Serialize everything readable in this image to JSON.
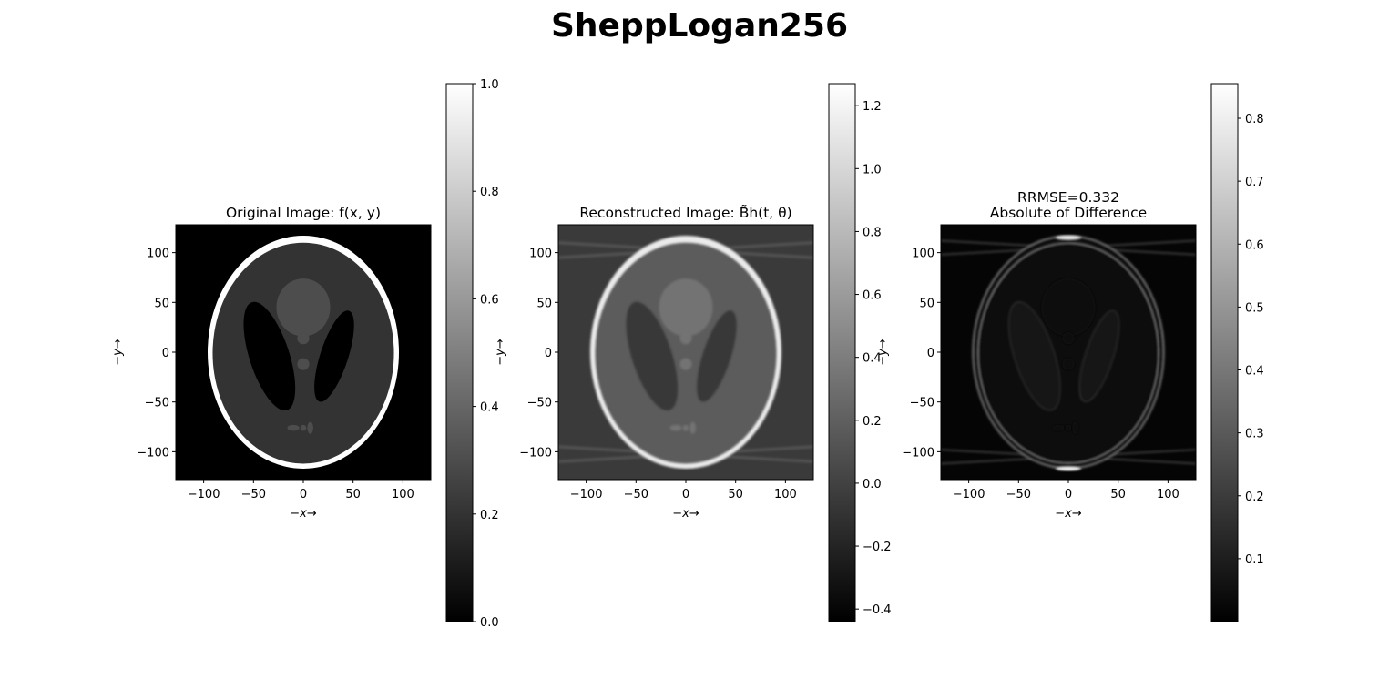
{
  "figure": {
    "suptitle": "SheppLogan256"
  },
  "chart_data": [
    {
      "type": "heatmap",
      "title_lines": [
        "Original Image: f(x, y)"
      ],
      "xlabel": "−x→",
      "ylabel": "−y→",
      "xlim": [
        -128,
        128
      ],
      "ylim": [
        -128,
        128
      ],
      "xticks": [
        -100,
        -50,
        0,
        50,
        100
      ],
      "yticks": [
        100,
        50,
        0,
        -50,
        -100
      ],
      "colormap": "gray",
      "content": "shepp-logan-original",
      "colorbar": {
        "min": 0.0,
        "max": 1.0,
        "ticks": [
          0.0,
          0.2,
          0.4,
          0.6,
          0.8,
          1.0
        ],
        "tick_labels": [
          "0.0",
          "0.2",
          "0.4",
          "0.6",
          "0.8",
          "1.0"
        ]
      }
    },
    {
      "type": "heatmap",
      "title_lines": [
        "Reconstructed Image: B̃h(t, θ)"
      ],
      "xlabel": "−x→",
      "ylabel": "−y→",
      "xlim": [
        -128,
        128
      ],
      "ylim": [
        -128,
        128
      ],
      "xticks": [
        -100,
        -50,
        0,
        50,
        100
      ],
      "yticks": [
        100,
        50,
        0,
        -50,
        -100
      ],
      "colormap": "gray",
      "content": "shepp-logan-reconstruction",
      "colorbar": {
        "min": -0.44,
        "max": 1.27,
        "ticks": [
          -0.4,
          -0.2,
          0.0,
          0.2,
          0.4,
          0.6,
          0.8,
          1.0,
          1.2
        ],
        "tick_labels": [
          "−0.4",
          "−0.2",
          "0.0",
          "0.2",
          "0.4",
          "0.6",
          "0.8",
          "1.0",
          "1.2"
        ]
      }
    },
    {
      "type": "heatmap",
      "title_lines": [
        "RRMSE=0.332",
        "Absolute of Difference"
      ],
      "xlabel": "−x→",
      "ylabel": "−y→",
      "xlim": [
        -128,
        128
      ],
      "ylim": [
        -128,
        128
      ],
      "xticks": [
        -100,
        -50,
        0,
        50,
        100
      ],
      "yticks": [
        100,
        50,
        0,
        -50,
        -100
      ],
      "colormap": "gray",
      "content": "shepp-logan-abs-difference",
      "colorbar": {
        "min": 0.0,
        "max": 0.855,
        "ticks": [
          0.1,
          0.2,
          0.3,
          0.4,
          0.5,
          0.6,
          0.7,
          0.8
        ],
        "tick_labels": [
          "0.1",
          "0.2",
          "0.3",
          "0.4",
          "0.5",
          "0.6",
          "0.7",
          "0.8"
        ]
      }
    }
  ]
}
